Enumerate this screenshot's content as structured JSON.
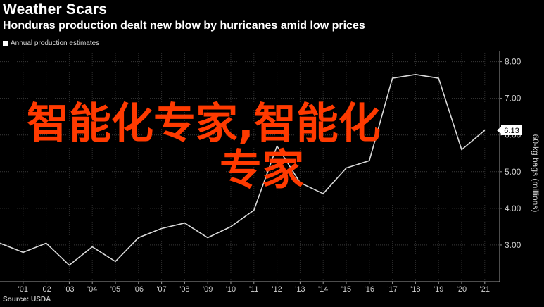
{
  "header": {
    "title": "Weather Scars",
    "subtitle": "Honduras production dealt new blow by hurricanes amid low prices",
    "legend_label": "Annual production estimates"
  },
  "footer": {
    "source": "Source: USDA"
  },
  "watermark": {
    "line1": "智能化专家,智能化",
    "line2": "专家",
    "color": "#ff3a00"
  },
  "chart_data": {
    "type": "line",
    "title": "",
    "xlabel": "",
    "ylabel": "60-kg bags (millions)",
    "x": [
      "2000",
      "2001",
      "2002",
      "2003",
      "2004",
      "2005",
      "2006",
      "2007",
      "2008",
      "2009",
      "2010",
      "2011",
      "2012",
      "2013",
      "2014",
      "2015",
      "2016",
      "2017",
      "2018",
      "2019",
      "2020",
      "2021"
    ],
    "x_tick_labels": [
      "'01",
      "'02",
      "'03",
      "'04",
      "'05",
      "'06",
      "'07",
      "'08",
      "'09",
      "'10",
      "'11",
      "'12",
      "'13",
      "'14",
      "'15",
      "'16",
      "'17",
      "'18",
      "'19",
      "'20",
      "'21"
    ],
    "series": [
      {
        "values": [
          3.05,
          2.8,
          3.05,
          2.45,
          2.95,
          2.55,
          3.2,
          3.45,
          3.6,
          3.2,
          3.5,
          3.95,
          5.7,
          4.7,
          4.4,
          5.1,
          5.3,
          7.55,
          7.65,
          7.55,
          5.6,
          6.13
        ]
      }
    ],
    "ylim": [
      2.0,
      8.3
    ],
    "y_ticks": [
      "3.00",
      "4.00",
      "5.00",
      "6.00",
      "7.00",
      "8.00"
    ],
    "y_tick_values": [
      3,
      4,
      5,
      6,
      7,
      8
    ],
    "last_value_label": "6.13",
    "y_axis_position": "right",
    "grid": true,
    "line_color": "#d9d9d9"
  }
}
